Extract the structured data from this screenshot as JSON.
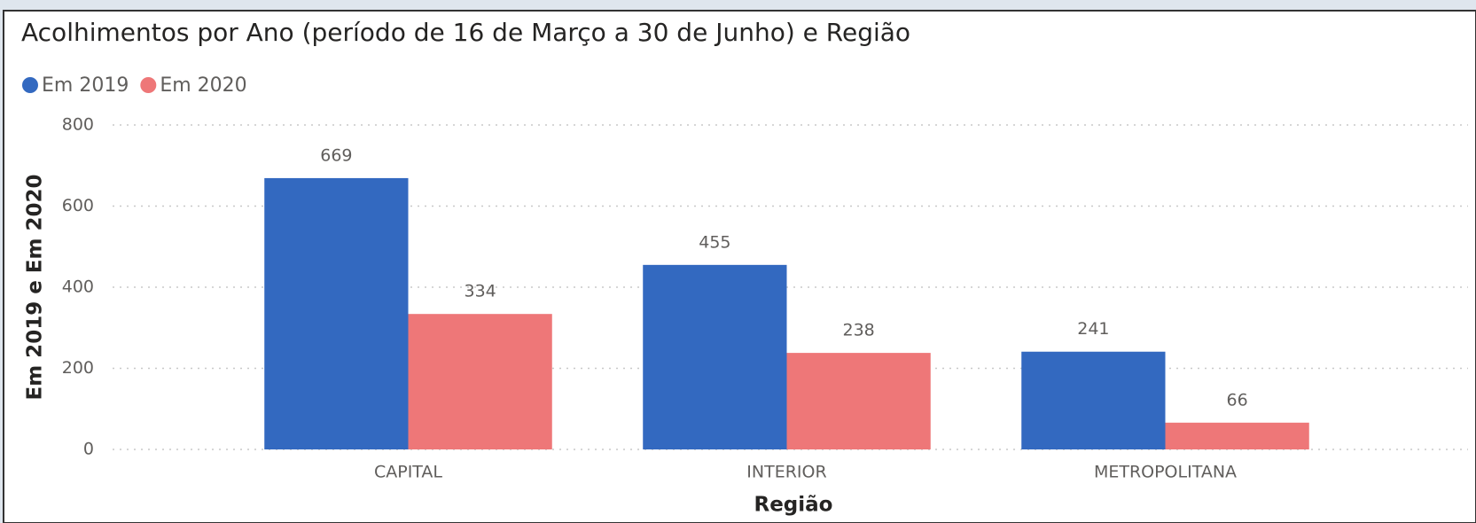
{
  "chart_data": {
    "type": "bar",
    "title": "Acolhimentos por Ano (período de 16 de Março a 30 de Junho) e Região",
    "x_label": "Região",
    "y_label": "Em 2019 e Em 2020",
    "categories": [
      "CAPITAL",
      "INTERIOR",
      "METROPOLITANA"
    ],
    "series": [
      {
        "name": "Em 2019",
        "color": "#3369c0",
        "values": [
          669,
          455,
          241
        ]
      },
      {
        "name": "Em 2020",
        "color": "#ee7778",
        "values": [
          334,
          238,
          66
        ]
      }
    ],
    "ylim": [
      0,
      800
    ],
    "yticks": [
      0,
      200,
      400,
      600,
      800
    ],
    "grid": true,
    "legend": "top-left"
  }
}
